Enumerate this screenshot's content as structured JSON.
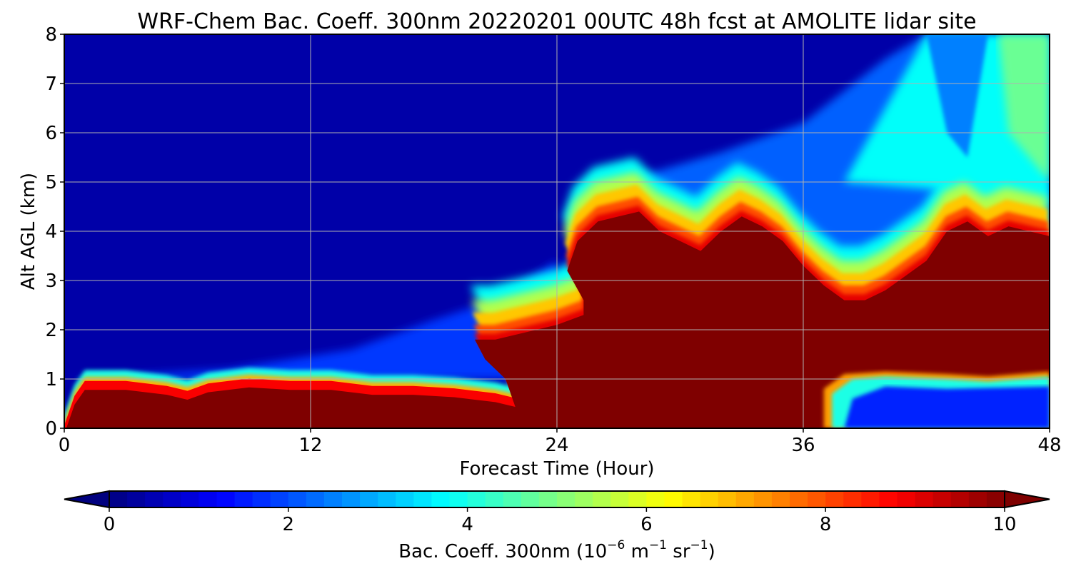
{
  "chart_data": {
    "type": "heatmap",
    "title": "WRF-Chem Bac. Coeff. 300nm  20220201 00UTC 48h fcst at AMOLITE lidar site",
    "xlabel": "Forecast Time (Hour)",
    "ylabel": "Alt AGL (km)",
    "xlim": [
      0,
      48
    ],
    "ylim": [
      0,
      8
    ],
    "xticks": [
      0,
      12,
      24,
      36,
      48
    ],
    "yticks": [
      0,
      1,
      2,
      3,
      4,
      5,
      6,
      7,
      8
    ],
    "grid": true,
    "colorbar": {
      "label_main": "Bac. Coeff. 300nm  (10",
      "label_exp1": "−6",
      "label_mid": " m",
      "label_exp2": "−1",
      "label_mid2": " sr",
      "label_exp3": "−1",
      "label_end": ")",
      "range": [
        0,
        10
      ],
      "ticks": [
        0,
        2,
        4,
        6,
        8,
        10
      ],
      "extend": "both",
      "colormap": "jet"
    },
    "colors": {
      "jet_stops": [
        "#00007f",
        "#0000ff",
        "#007fff",
        "#00ffff",
        "#7fff7f",
        "#ffff00",
        "#ff7f00",
        "#ff0000",
        "#7f0000"
      ],
      "background_clean": "#0000a8",
      "grid": "#b0b0b0"
    },
    "regions": {
      "surface_layer_top": [
        [
          0,
          0
        ],
        [
          0.5,
          0.6
        ],
        [
          1,
          0.9
        ],
        [
          3,
          0.9
        ],
        [
          5,
          0.8
        ],
        [
          6,
          0.7
        ],
        [
          7,
          0.85
        ],
        [
          9,
          0.95
        ],
        [
          11,
          0.9
        ],
        [
          13,
          0.9
        ],
        [
          15,
          0.8
        ],
        [
          17,
          0.8
        ],
        [
          19,
          0.75
        ],
        [
          20,
          0.7
        ],
        [
          21,
          0.65
        ],
        [
          22,
          0.55
        ]
      ],
      "main_plume_top": [
        [
          22,
          0.4
        ],
        [
          21.5,
          1.0
        ],
        [
          20.5,
          1.4
        ],
        [
          20,
          1.8
        ],
        [
          21,
          1.8
        ],
        [
          22,
          1.9
        ],
        [
          23,
          2.0
        ],
        [
          24,
          2.1
        ],
        [
          25.3,
          2.3
        ],
        [
          25.3,
          2.6
        ],
        [
          24.5,
          3.2
        ],
        [
          25,
          3.8
        ],
        [
          26,
          4.2
        ],
        [
          27,
          4.3
        ],
        [
          28,
          4.4
        ],
        [
          29,
          4.0
        ],
        [
          30,
          3.8
        ],
        [
          31,
          3.6
        ],
        [
          32,
          4.0
        ],
        [
          33,
          4.3
        ],
        [
          34,
          4.1
        ],
        [
          35,
          3.8
        ],
        [
          36,
          3.3
        ],
        [
          37,
          2.9
        ],
        [
          38,
          2.6
        ],
        [
          39,
          2.6
        ],
        [
          40,
          2.8
        ],
        [
          41,
          3.1
        ],
        [
          42,
          3.4
        ],
        [
          43,
          4.0
        ],
        [
          44,
          4.2
        ],
        [
          45,
          3.9
        ],
        [
          46,
          4.1
        ],
        [
          47,
          4.0
        ],
        [
          48,
          3.9
        ]
      ]
    }
  }
}
